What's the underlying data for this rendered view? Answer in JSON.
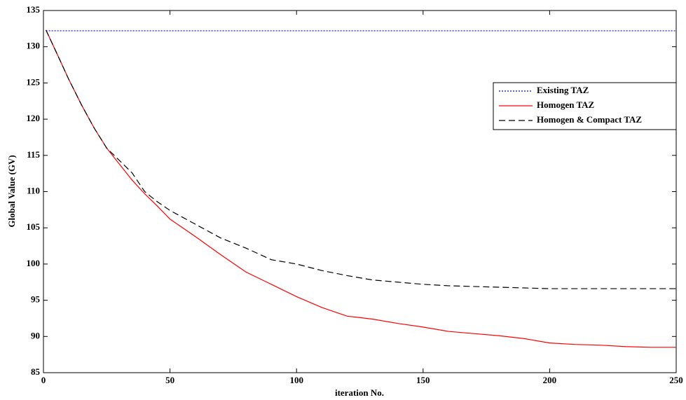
{
  "chart_data": {
    "type": "line",
    "xlabel": "iteration No.",
    "ylabel": "Global Value (GV)",
    "x": [
      1,
      5,
      10,
      15,
      20,
      25,
      30,
      35,
      40,
      45,
      50,
      60,
      70,
      80,
      90,
      100,
      110,
      120,
      130,
      140,
      150,
      160,
      170,
      180,
      190,
      200,
      210,
      220,
      230,
      240,
      250
    ],
    "series": [
      {
        "name": "Existing TAZ",
        "color": "#0000ff",
        "style": "dotted",
        "values": [
          132.2,
          132.2,
          132.2,
          132.2,
          132.2,
          132.2,
          132.2,
          132.2,
          132.2,
          132.2,
          132.2,
          132.2,
          132.2,
          132.2,
          132.2,
          132.2,
          132.2,
          132.2,
          132.2,
          132.2,
          132.2,
          132.2,
          132.2,
          132.2,
          132.2,
          132.2,
          132.2,
          132.2,
          132.2,
          132.2,
          132.2
        ]
      },
      {
        "name": "Homogen TAZ",
        "color": "#ff0000",
        "style": "solid",
        "values": [
          132.3,
          129.3,
          125.5,
          122,
          118.8,
          116,
          113.8,
          111.6,
          109.7,
          108,
          106.2,
          103.8,
          101.3,
          98.9,
          97.2,
          95.5,
          94,
          92.8,
          92.4,
          91.8,
          91.3,
          90.7,
          90.4,
          90.1,
          89.7,
          89.1,
          88.9,
          88.8,
          88.6,
          88.5,
          88.5
        ]
      },
      {
        "name": "Homogen & Compact TAZ",
        "color": "#000000",
        "style": "dashed",
        "values": [
          132.3,
          129.3,
          125.5,
          122,
          118.8,
          116,
          114.3,
          112.6,
          110,
          108.6,
          107.4,
          105.5,
          103.6,
          102.2,
          100.6,
          100,
          99.1,
          98.4,
          97.8,
          97.5,
          97.2,
          97,
          96.9,
          96.8,
          96.7,
          96.6,
          96.6,
          96.6,
          96.6,
          96.6,
          96.6
        ]
      }
    ],
    "xlim": [
      0,
      250
    ],
    "xticks": [
      0,
      50,
      100,
      150,
      200,
      250
    ],
    "ylim": [
      85,
      135
    ],
    "yticks": [
      85,
      90,
      95,
      100,
      105,
      110,
      115,
      120,
      125,
      130,
      135
    ],
    "legend": "upper right"
  }
}
